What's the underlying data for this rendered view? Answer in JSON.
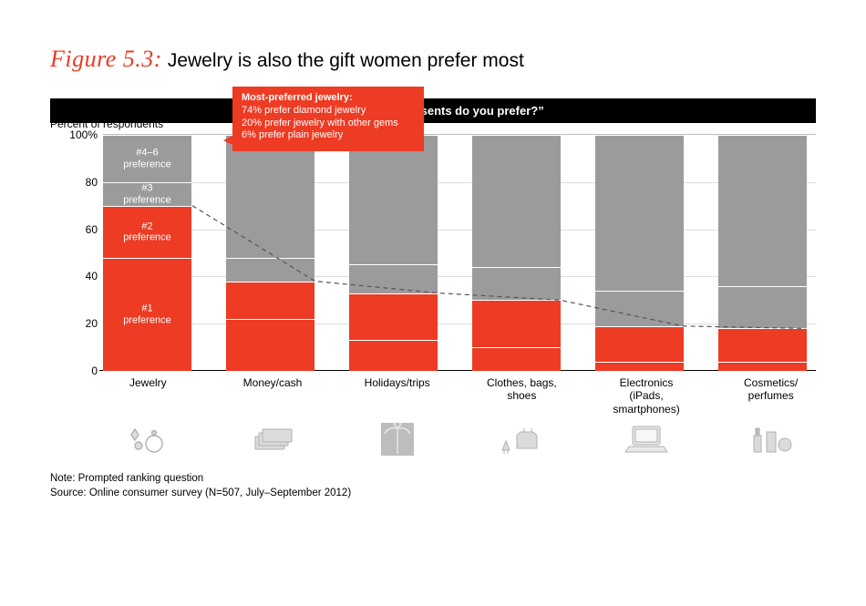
{
  "figure": {
    "number": "Figure 5.3:",
    "caption": "Jewelry is also the gift women prefer most",
    "number_color": "#ed3b24"
  },
  "question_bar": {
    "text": "“What kind of presents do you prefer?”",
    "bg": "#000000",
    "fg": "#ffffff"
  },
  "chart": {
    "type": "stacked-bar",
    "y_axis_title": "Percent of respondents",
    "ylim": [
      0,
      100
    ],
    "yticks": [
      {
        "v": 0,
        "label": "0"
      },
      {
        "v": 20,
        "label": "20"
      },
      {
        "v": 40,
        "label": "40"
      },
      {
        "v": 60,
        "label": "60"
      },
      {
        "v": 80,
        "label": "80"
      },
      {
        "v": 100,
        "label": "100%"
      }
    ],
    "segment_order": [
      "p46",
      "p3",
      "p2",
      "p1"
    ],
    "segment_styles": {
      "p1": {
        "color": "#ed3b24",
        "label": "#1\npreference"
      },
      "p2": {
        "color": "#ed3b24",
        "label": "#2\npreference"
      },
      "p3": {
        "color": "#9b9b9b",
        "label": "#3\npreference"
      },
      "p46": {
        "color": "#9b9b9b",
        "label": "#4–6\npreference"
      }
    },
    "show_segment_labels_on_first_only": true,
    "categories": [
      {
        "key": "jewelry",
        "label": "Jewelry",
        "icon": "jewelry-icon",
        "p1": 48,
        "p2": 22,
        "p3": 10,
        "p46": 20
      },
      {
        "key": "money",
        "label": "Money/cash",
        "icon": "money-icon",
        "p1": 22,
        "p2": 16,
        "p3": 10,
        "p46": 52
      },
      {
        "key": "holidays",
        "label": "Holidays/trips",
        "icon": "holidays-icon",
        "p1": 13,
        "p2": 20,
        "p3": 12,
        "p46": 55
      },
      {
        "key": "clothes",
        "label": "Clothes, bags,\nshoes",
        "icon": "clothes-icon",
        "p1": 10,
        "p2": 20,
        "p3": 14,
        "p46": 56
      },
      {
        "key": "electronics",
        "label": "Electronics\n(iPads, smartphones)",
        "icon": "electronics-icon",
        "p1": 4,
        "p2": 15,
        "p3": 15,
        "p46": 66
      },
      {
        "key": "cosmetics",
        "label": "Cosmetics/\nperfumes",
        "icon": "cosmetics-icon",
        "p1": 4,
        "p2": 14,
        "p3": 18,
        "p46": 64
      }
    ],
    "trend_line": {
      "stroke": "#555555",
      "dash": "5,4",
      "width": 1.2,
      "follows_top_of": "p2"
    },
    "background": "#ffffff",
    "grid_color": "#dddddd"
  },
  "callout": {
    "bg": "#ed3b24",
    "head": "Most-preferred jewelry:",
    "lines": [
      "74% prefer diamond jewelry",
      "20% prefer jewelry with other gems",
      "6% prefer plain jewelry"
    ]
  },
  "footnote": {
    "note": "Note: Prompted ranking question",
    "source": "Source: Online consumer survey (N=507, July–September 2012)"
  }
}
